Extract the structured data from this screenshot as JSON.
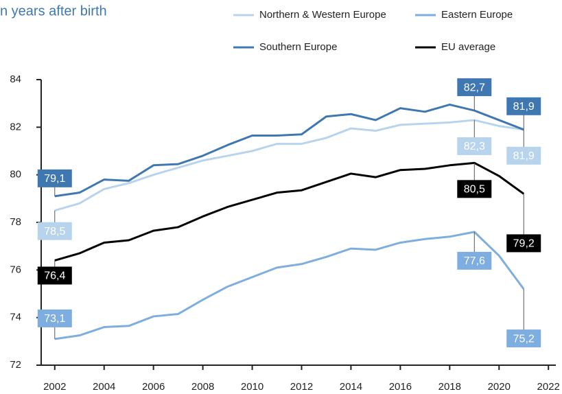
{
  "chart_data": {
    "type": "line",
    "title": "n years after birth",
    "x": [
      2002,
      2003,
      2004,
      2005,
      2006,
      2007,
      2008,
      2009,
      2010,
      2011,
      2012,
      2013,
      2014,
      2015,
      2016,
      2017,
      2018,
      2019,
      2020,
      2021
    ],
    "series": [
      {
        "name": "Northern & Western Europe",
        "color": "#b8d4ec",
        "values": [
          78.5,
          78.8,
          79.4,
          79.65,
          80.0,
          80.3,
          80.6,
          80.8,
          81.0,
          81.3,
          81.3,
          81.55,
          81.95,
          81.85,
          82.1,
          82.15,
          82.2,
          82.3,
          82.05,
          81.9
        ],
        "value_labels": [
          "78,5",
          null,
          null,
          null,
          null,
          null,
          null,
          null,
          null,
          null,
          null,
          null,
          null,
          null,
          null,
          null,
          null,
          "82,3",
          null,
          "81,9"
        ]
      },
      {
        "name": "Eastern Europe",
        "color": "#7eaedf",
        "values": [
          73.1,
          73.25,
          73.6,
          73.65,
          74.05,
          74.15,
          74.75,
          75.3,
          75.7,
          76.1,
          76.25,
          76.55,
          76.9,
          76.85,
          77.15,
          77.3,
          77.4,
          77.6,
          76.6,
          75.2
        ],
        "value_labels": [
          "73,1",
          null,
          null,
          null,
          null,
          null,
          null,
          null,
          null,
          null,
          null,
          null,
          null,
          null,
          null,
          null,
          null,
          "77,6",
          null,
          "75,2"
        ]
      },
      {
        "name": "Southern Europe",
        "color": "#3f78b1",
        "values": [
          79.1,
          79.25,
          79.8,
          79.75,
          80.4,
          80.45,
          80.8,
          81.25,
          81.65,
          81.65,
          81.7,
          82.45,
          82.55,
          82.3,
          82.8,
          82.65,
          82.95,
          82.7,
          82.3,
          81.9
        ],
        "value_labels": [
          "79,1",
          null,
          null,
          null,
          null,
          null,
          null,
          null,
          null,
          null,
          null,
          null,
          null,
          null,
          null,
          null,
          null,
          "82,7",
          null,
          "81,9"
        ]
      },
      {
        "name": "EU average",
        "color": "#000000",
        "values": [
          76.4,
          76.7,
          77.15,
          77.25,
          77.65,
          77.8,
          78.25,
          78.65,
          78.95,
          79.25,
          79.35,
          79.7,
          80.05,
          79.9,
          80.2,
          80.25,
          80.4,
          80.5,
          79.95,
          79.2
        ],
        "value_labels": [
          "76,4",
          null,
          null,
          null,
          null,
          null,
          null,
          null,
          null,
          null,
          null,
          null,
          null,
          null,
          null,
          null,
          null,
          "80,5",
          null,
          "79,2"
        ]
      }
    ],
    "xlim": [
      2001.45,
      2022.3
    ],
    "xticks": [
      2002,
      2004,
      2006,
      2008,
      2010,
      2012,
      2014,
      2016,
      2018,
      2020,
      2022
    ],
    "ylim": [
      72,
      84
    ],
    "yticks": [
      72,
      74,
      76,
      78,
      80,
      82,
      84
    ],
    "legend": "top",
    "grid": false
  }
}
